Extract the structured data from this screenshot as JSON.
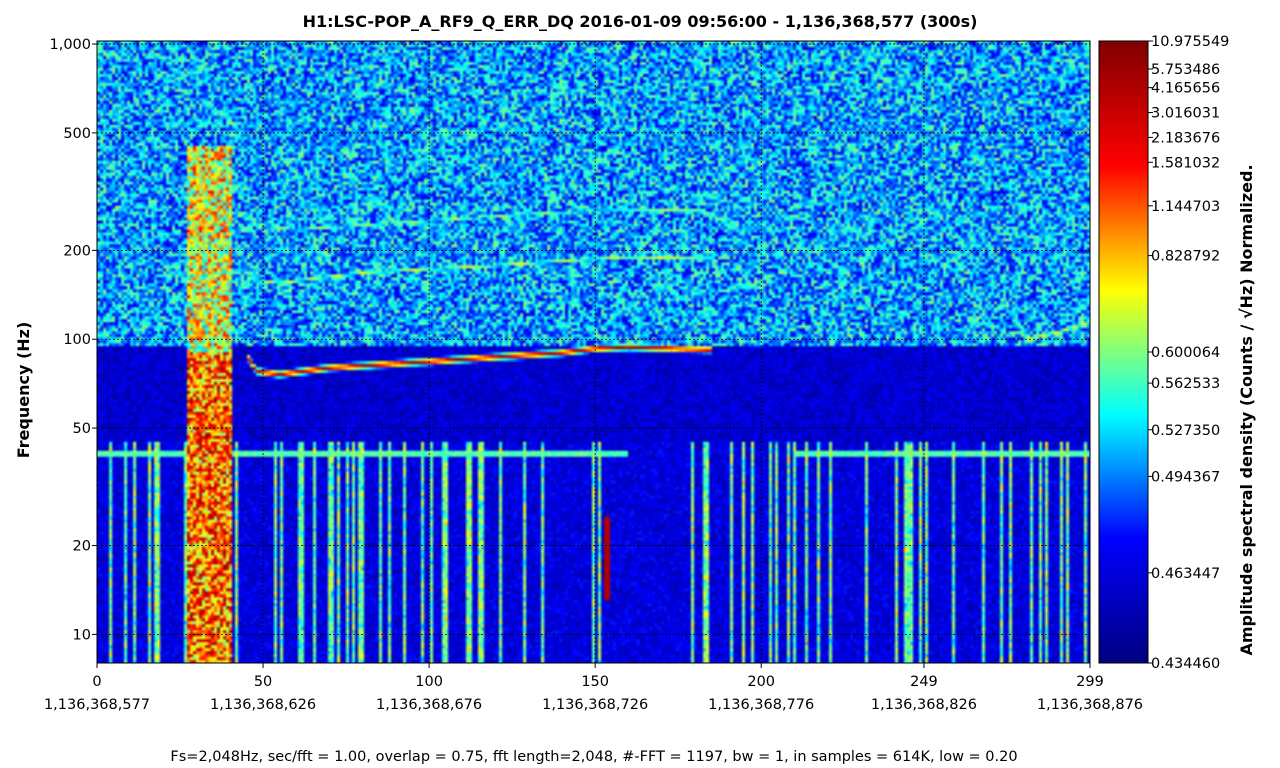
{
  "chart_data": {
    "type": "heatmap",
    "title": "H1:LSC-POP_A_RF9_Q_ERR_DQ 2016-01-09 09:56:00 - 1,136,368,577 (300s)",
    "ylabel": "Frequency (Hz)",
    "colorbar_label": "Amplitude spectral density (Counts / √Hz) Normalized.",
    "footer": "Fs=2,048Hz, sec/fft = 1.00, overlap = 0.75, fft length=2,048, #-FFT = 1197, bw = 1, in samples = 614K, low = 0.20",
    "y_scale": "log",
    "grid": true,
    "xlim": [
      0,
      299
    ],
    "ylim": [
      8,
      1024
    ],
    "x_ticks": [
      {
        "value": 0,
        "label": "0",
        "gps": "1,136,368,577"
      },
      {
        "value": 50,
        "label": "50",
        "gps": "1,136,368,626"
      },
      {
        "value": 100,
        "label": "100",
        "gps": "1,136,368,676"
      },
      {
        "value": 150,
        "label": "150",
        "gps": "1,136,368,726"
      },
      {
        "value": 200,
        "label": "200",
        "gps": "1,136,368,776"
      },
      {
        "value": 249,
        "label": "249",
        "gps": "1,136,368,826"
      },
      {
        "value": 299,
        "label": "299",
        "gps": "1,136,368,876"
      }
    ],
    "y_ticks": [
      {
        "value": 10,
        "label": "10"
      },
      {
        "value": 20,
        "label": "20"
      },
      {
        "value": 50,
        "label": "50"
      },
      {
        "value": 100,
        "label": "100"
      },
      {
        "value": 200,
        "label": "200"
      },
      {
        "value": 500,
        "label": "500"
      },
      {
        "value": 1000,
        "label": "1,000"
      }
    ],
    "colorbar_ticks": [
      "10.975549",
      "5.753486",
      "4.165656",
      "3.016031",
      "2.183676",
      "1.581032",
      "1.144703",
      "0.828792",
      "0.600064",
      "0.562533",
      "0.527350",
      "0.494367",
      "0.463447",
      "0.434460"
    ],
    "colorbar_fraction": [
      1.0,
      0.955,
      0.925,
      0.885,
      0.845,
      0.805,
      0.735,
      0.655,
      0.5,
      0.45,
      0.375,
      0.3,
      0.145,
      0.0
    ],
    "colormap": [
      "#00007f",
      "#0000ff",
      "#00ffff",
      "#ffff00",
      "#ff0000",
      "#7f0000"
    ],
    "features": {
      "main_line": {
        "t": [
          45,
          48,
          55,
          70,
          100,
          140,
          150,
          160,
          185
        ],
        "f": [
          88,
          78,
          76,
          80,
          84,
          90,
          93,
          94,
          92
        ]
      },
      "harmonic_line": {
        "t": [
          45,
          55,
          80,
          120,
          160,
          185
        ],
        "f": [
          160,
          155,
          168,
          178,
          190,
          187
        ]
      },
      "upper_line": {
        "t": [
          40,
          50,
          60,
          100,
          140,
          180,
          185
        ],
        "f": [
          270,
          242,
          235,
          252,
          270,
          275,
          262
        ]
      },
      "late_line": {
        "t": [
          270,
          285,
          299
        ],
        "f": [
          230,
          220,
          240
        ]
      },
      "late_low_line": {
        "t": [
          280,
          290,
          299
        ],
        "f": [
          100,
          106,
          115
        ]
      },
      "glitch_band": {
        "t_start": 27,
        "t_end": 41
      },
      "glitch_spike": {
        "t": 154,
        "f_low": 13,
        "f_high": 25
      },
      "line_40hz": {
        "f": 41
      }
    }
  }
}
